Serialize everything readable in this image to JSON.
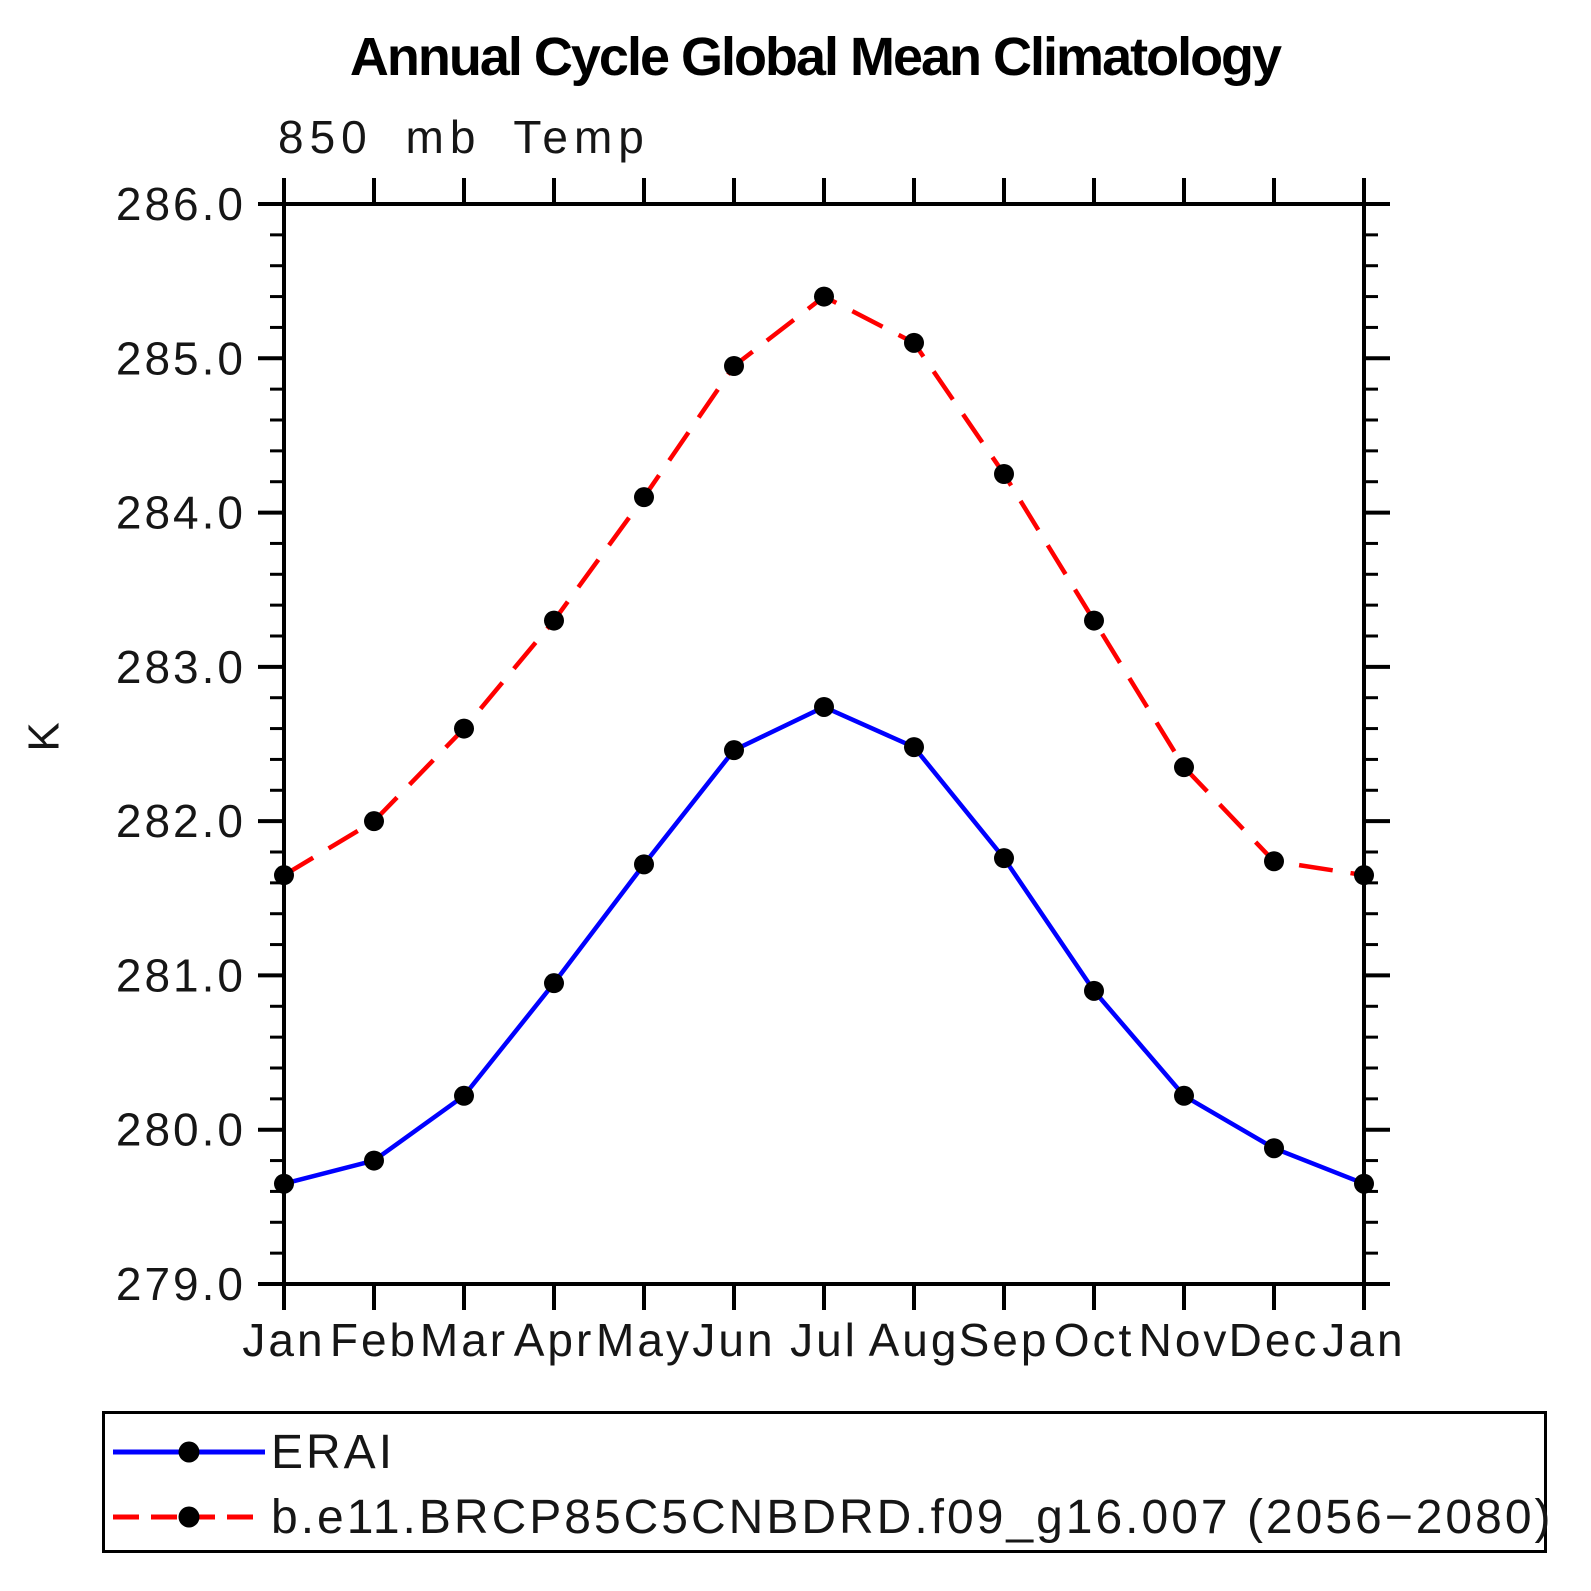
{
  "title": "Annual Cycle Global Mean Climatology",
  "subtitle": "850 mb Temp",
  "ylabel": "K",
  "colors": {
    "erai_line": "#0000ff",
    "model_line": "#ff0000",
    "marker": "#000000",
    "axis": "#000000"
  },
  "legend": {
    "items": [
      {
        "label": "ERAI",
        "color": "#0000ff",
        "line_style": "solid"
      },
      {
        "label": "b.e11.BRCP85C5CNBDRD.f09_g16.007 (2056−2080)",
        "color": "#ff0000",
        "line_style": "dashed"
      }
    ]
  },
  "chart_data": {
    "type": "line",
    "title": "Annual Cycle Global Mean Climatology",
    "subtitle": "850 mb Temp",
    "xlabel": "",
    "ylabel": "K",
    "categories": [
      "Jan",
      "Feb",
      "Mar",
      "Apr",
      "May",
      "Jun",
      "Jul",
      "Aug",
      "Sep",
      "Oct",
      "Nov",
      "Dec",
      "Jan"
    ],
    "series": [
      {
        "name": "ERAI",
        "color": "#0000ff",
        "line_style": "solid",
        "marker": "filled-circle",
        "values": [
          279.65,
          279.8,
          280.22,
          280.95,
          281.72,
          282.46,
          282.74,
          282.48,
          281.76,
          280.9,
          280.22,
          279.88,
          279.65
        ]
      },
      {
        "name": "b.e11.BRCP85C5CNBDRD.f09_g16.007 (2056−2080)",
        "color": "#ff0000",
        "line_style": "dashed",
        "marker": "filled-circle",
        "values": [
          281.65,
          282.0,
          282.6,
          283.3,
          284.1,
          284.95,
          285.4,
          285.1,
          284.25,
          283.3,
          282.35,
          281.74,
          281.65
        ]
      }
    ],
    "ylim": [
      279.0,
      286.0
    ],
    "ytick_major": 1.0,
    "ytick_minor": 0.2,
    "grid": false,
    "legend_position": "bottom"
  }
}
